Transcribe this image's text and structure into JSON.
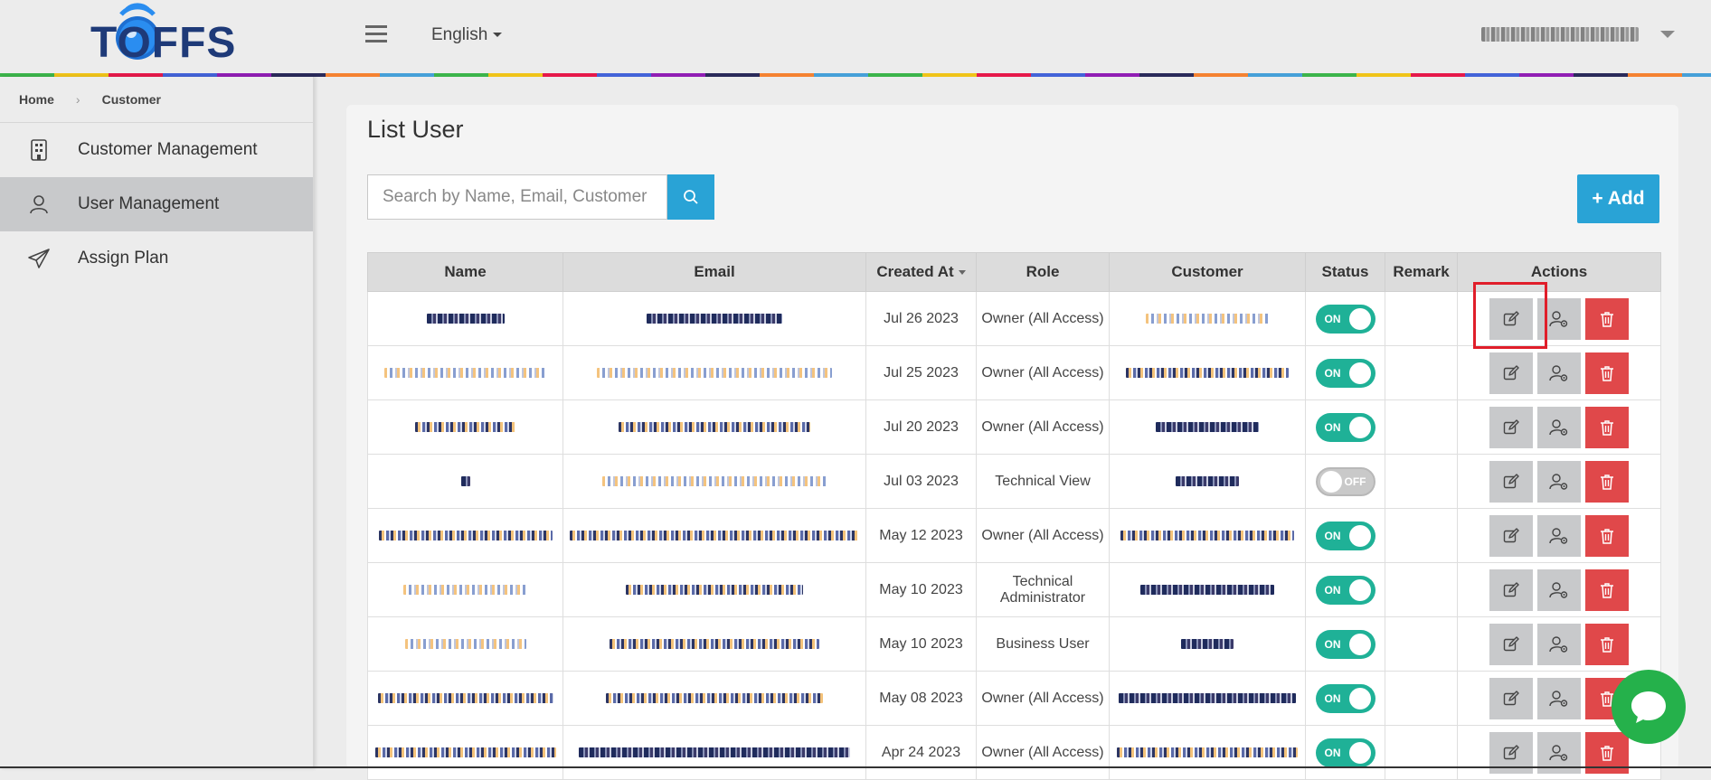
{
  "header": {
    "logo_text": "TOFFS",
    "language": "English",
    "user_email_redacted": ""
  },
  "breadcrumb": {
    "home": "Home",
    "current": "Customer"
  },
  "sidebar": {
    "items": [
      {
        "label": "Customer Management",
        "icon": "building-icon",
        "active": false
      },
      {
        "label": "User Management",
        "icon": "user-icon",
        "active": true
      },
      {
        "label": "Assign Plan",
        "icon": "paper-plane-icon",
        "active": false
      }
    ]
  },
  "main": {
    "title": "List User",
    "search": {
      "placeholder": "Search by Name, Email, Customer",
      "value": ""
    },
    "add_label": "+ Add",
    "table": {
      "columns": [
        "Name",
        "Email",
        "Created At",
        "Role",
        "Customer",
        "Status",
        "Remark",
        "Actions"
      ],
      "rows": [
        {
          "created": "Jul 26 2023",
          "role": "Owner (All Access)",
          "status": "ON"
        },
        {
          "created": "Jul 25 2023",
          "role": "Owner (All Access)",
          "status": "ON"
        },
        {
          "created": "Jul 20 2023",
          "role": "Owner (All Access)",
          "status": "ON"
        },
        {
          "created": "Jul 03 2023",
          "role": "Technical View",
          "status": "OFF"
        },
        {
          "created": "May 12 2023",
          "role": "Owner (All Access)",
          "status": "ON"
        },
        {
          "created": "May 10 2023",
          "role": "Technical Administrator",
          "status": "ON"
        },
        {
          "created": "May 10 2023",
          "role": "Business User",
          "status": "ON"
        },
        {
          "created": "May 08 2023",
          "role": "Owner (All Access)",
          "status": "ON"
        },
        {
          "created": "Apr 24 2023",
          "role": "Owner (All Access)",
          "status": "ON"
        }
      ]
    }
  },
  "colors": {
    "accent": "#29a3d6",
    "toggle_on": "#1fb197",
    "delete": "#e0484a",
    "chat": "#25b14b",
    "highlight": "#e01e2a"
  }
}
